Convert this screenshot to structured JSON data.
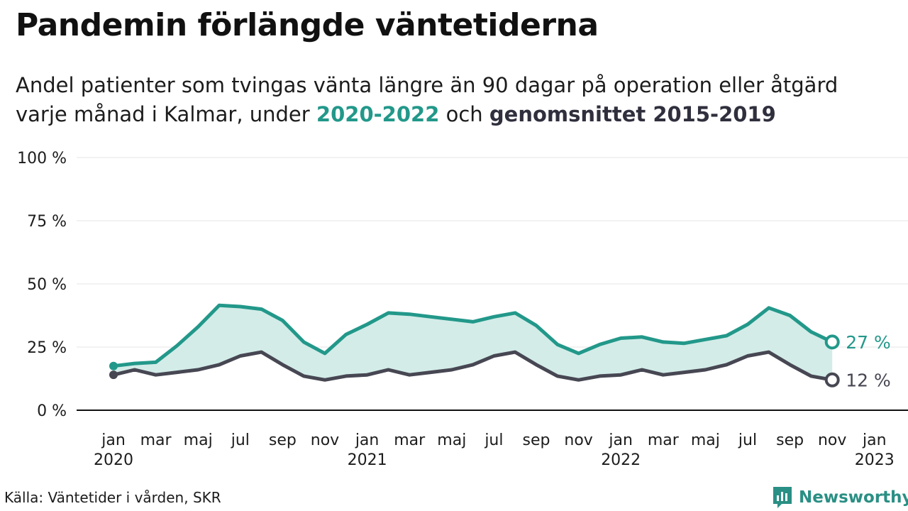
{
  "title": "Pandemin förlängde väntetiderna",
  "subtitle": {
    "line1": "Andel patienter som tvingas vänta längre än 90 dagar på operation eller åtgärd",
    "line2_pre": "varje månad i Kalmar, under ",
    "line2_series_a": "2020-2022",
    "line2_mid": " och ",
    "line2_series_b": "genomsnittet 2015-2019"
  },
  "source": "Källa: Väntetider i vården, SKR",
  "logo_text": "Newsworthy",
  "colors": {
    "series_2020_2022": "#22988a",
    "average_2015_2019": "#474753",
    "area_fill": "#d3ece8",
    "axis": "#111111",
    "grid": "#e6e6e6"
  },
  "chart_data": {
    "type": "line",
    "title": "",
    "xlabel": "",
    "ylabel": "",
    "ylim": [
      0,
      100
    ],
    "y_ticks": [
      {
        "value": 0,
        "label": "0 %"
      },
      {
        "value": 25,
        "label": "25 %"
      },
      {
        "value": 50,
        "label": "50 %"
      },
      {
        "value": 75,
        "label": "75 %"
      },
      {
        "value": 100,
        "label": "100 %"
      }
    ],
    "x_ticks": [
      {
        "month": 0,
        "label": "jan",
        "year": "2020"
      },
      {
        "month": 2,
        "label": "mar"
      },
      {
        "month": 4,
        "label": "maj"
      },
      {
        "month": 6,
        "label": "jul"
      },
      {
        "month": 8,
        "label": "sep"
      },
      {
        "month": 10,
        "label": "nov"
      },
      {
        "month": 12,
        "label": "jan",
        "year": "2021"
      },
      {
        "month": 14,
        "label": "mar"
      },
      {
        "month": 16,
        "label": "maj"
      },
      {
        "month": 18,
        "label": "jul"
      },
      {
        "month": 20,
        "label": "sep"
      },
      {
        "month": 22,
        "label": "nov"
      },
      {
        "month": 24,
        "label": "jan",
        "year": "2022"
      },
      {
        "month": 26,
        "label": "mar"
      },
      {
        "month": 28,
        "label": "maj"
      },
      {
        "month": 30,
        "label": "jul"
      },
      {
        "month": 32,
        "label": "sep"
      },
      {
        "month": 34,
        "label": "nov"
      },
      {
        "month": 36,
        "label": "jan",
        "year": "2023"
      }
    ],
    "x": [
      "2020-01",
      "2020-02",
      "2020-03",
      "2020-04",
      "2020-05",
      "2020-06",
      "2020-07",
      "2020-08",
      "2020-09",
      "2020-10",
      "2020-11",
      "2020-12",
      "2021-01",
      "2021-02",
      "2021-03",
      "2021-04",
      "2021-05",
      "2021-06",
      "2021-07",
      "2021-08",
      "2021-09",
      "2021-10",
      "2021-11",
      "2021-12",
      "2022-01",
      "2022-02",
      "2022-03",
      "2022-04",
      "2022-05",
      "2022-06",
      "2022-07",
      "2022-08",
      "2022-09",
      "2022-10",
      "2022-11"
    ],
    "grid": true,
    "area_between_series": true,
    "series": [
      {
        "name": "2020-2022",
        "color": "#22988a",
        "values": [
          17.5,
          18.5,
          19,
          25.5,
          33,
          41.5,
          41,
          40,
          35.5,
          27,
          22.5,
          30,
          34,
          38.5,
          38,
          37,
          36,
          35,
          37,
          38.5,
          33.5,
          26,
          22.5,
          26,
          28.5,
          29,
          27,
          26.5,
          28,
          29.5,
          34,
          40.5,
          37.5,
          31,
          27
        ],
        "end_label": "27 %"
      },
      {
        "name": "genomsnittet 2015-2019",
        "color": "#474753",
        "values": [
          14,
          16,
          14,
          15,
          16,
          18,
          21.5,
          23,
          18,
          13.5,
          12,
          13.5,
          14,
          16,
          14,
          15,
          16,
          18,
          21.5,
          23,
          18,
          13.5,
          12,
          13.5,
          14,
          16,
          14,
          15,
          16,
          18,
          21.5,
          23,
          18,
          13.5,
          12
        ],
        "end_label": "12 %"
      }
    ]
  }
}
